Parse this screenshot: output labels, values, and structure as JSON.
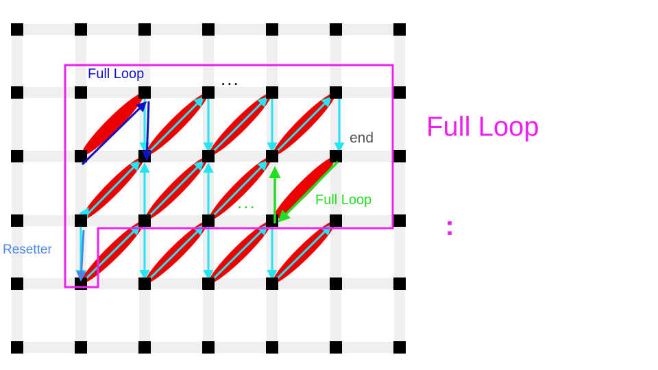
{
  "labels": {
    "full_loop_inner": "Full Loop",
    "dots_top": "...",
    "end": "end",
    "full_loop_green": "Full Loop",
    "dots_green": "...",
    "resetter": "Resetter",
    "full_loop_big": "Full Loop",
    "vertical_dots": ":"
  },
  "colors": {
    "grid_line": "#efefef",
    "node": "#000000",
    "ellipse": "#ee0000",
    "cyan_arrow": "#22e6f2",
    "blue_arrow": "#1010c8",
    "green_arrow": "#22dd22",
    "resetter_arrow": "#4a86e8",
    "magenta_box": "#ee22ee"
  }
}
